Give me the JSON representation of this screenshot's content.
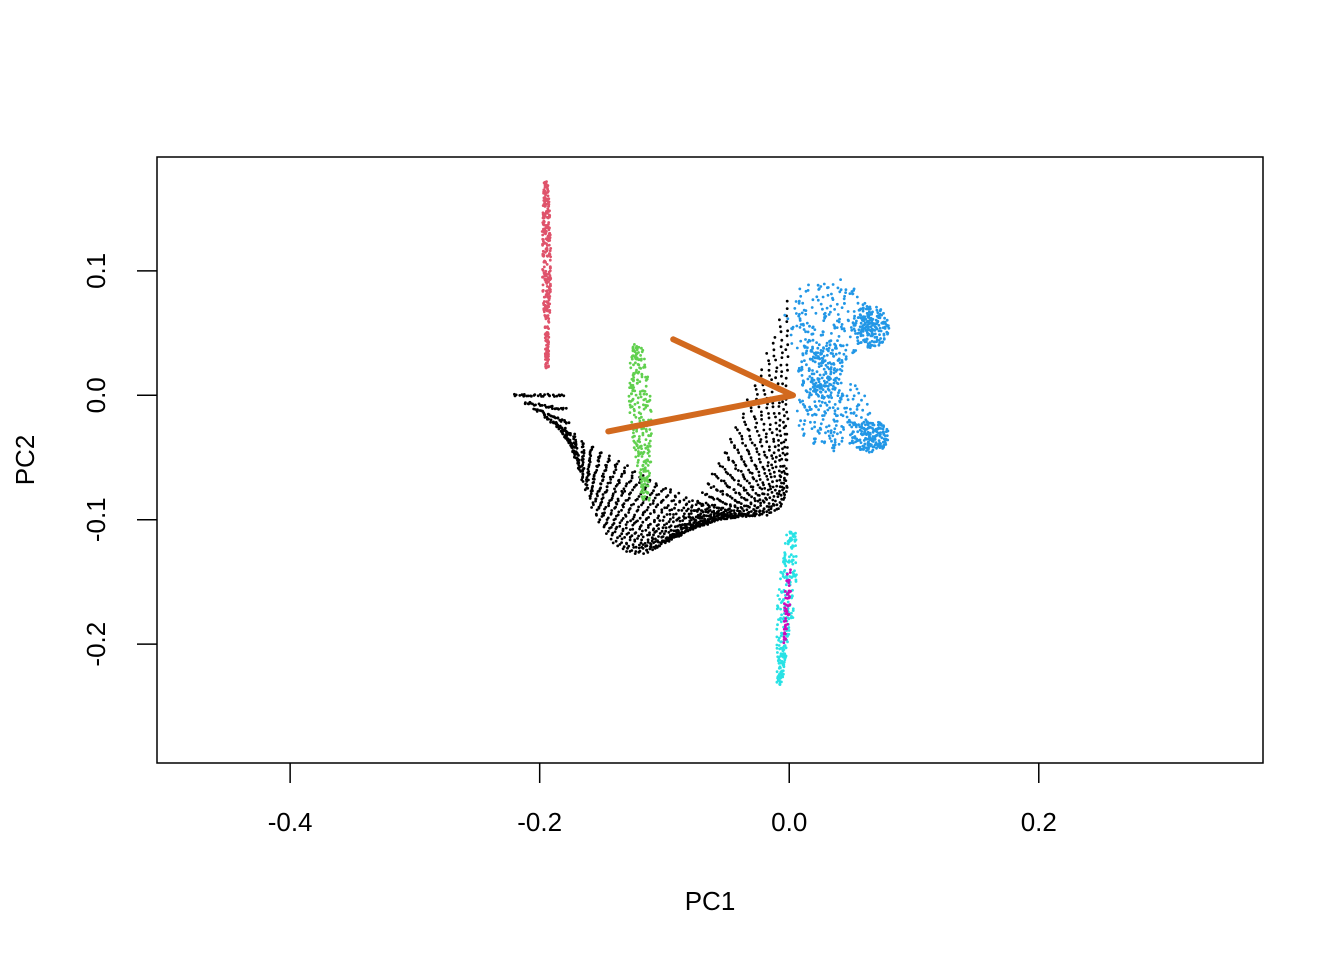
{
  "chart_data": {
    "type": "scatter",
    "title": "",
    "xlabel": "PC1",
    "ylabel": "PC2",
    "xlim": [
      -0.5067,
      0.3797
    ],
    "ylim": [
      -0.2955,
      0.1915
    ],
    "x_ticks": [
      {
        "value": -0.4,
        "label": "-0.4"
      },
      {
        "value": -0.2,
        "label": "-0.2"
      },
      {
        "value": 0.0,
        "label": "0.0"
      },
      {
        "value": 0.2,
        "label": "0.2"
      }
    ],
    "y_ticks": [
      {
        "value": -0.2,
        "label": "-0.2"
      },
      {
        "value": -0.1,
        "label": "-0.1"
      },
      {
        "value": 0.0,
        "label": "0.0"
      },
      {
        "value": 0.1,
        "label": "0.1"
      }
    ],
    "grid": false,
    "legend": "none",
    "clusters": [
      {
        "color": "#000000",
        "shape": "fan-band",
        "start": {
          "x": -0.201,
          "y": 0.0,
          "dx": -0.004,
          "dy": 0.0
        },
        "end": {
          "x": -0.002,
          "y": 0.075,
          "dx": 0.0,
          "dy": -0.15
        },
        "mid": {
          "x": -0.072,
          "y": -0.215,
          "dx": 0.012,
          "dy": 0.072
        },
        "width": 0.035,
        "points": 1400
      },
      {
        "color": "#df536b",
        "shape": "band",
        "start": {
          "x": -0.195,
          "y": 0.172
        },
        "end": {
          "x": -0.194,
          "y": 0.022
        },
        "width": 0.007,
        "points": 320
      },
      {
        "color": "#61d04f",
        "shape": "band",
        "start": {
          "x": -0.122,
          "y": 0.04
        },
        "end": {
          "x": -0.115,
          "y": -0.085
        },
        "width": 0.018,
        "points": 260
      },
      {
        "color": "#2297e6",
        "shape": "blob",
        "parts": [
          {
            "x": 0.03,
            "y": 0.06,
            "rx": 0.034,
            "ry": 0.035
          },
          {
            "x": 0.065,
            "y": 0.055,
            "rx": 0.015,
            "ry": 0.017
          },
          {
            "x": 0.035,
            "y": -0.015,
            "rx": 0.03,
            "ry": 0.03
          },
          {
            "x": 0.065,
            "y": -0.033,
            "rx": 0.015,
            "ry": 0.013
          },
          {
            "x": 0.025,
            "y": 0.022,
            "rx": 0.018,
            "ry": 0.025
          }
        ],
        "points": 900
      },
      {
        "color": "#28e2e5",
        "shape": "band",
        "start": {
          "x": 0.002,
          "y": -0.11
        },
        "end": {
          "x": -0.008,
          "y": -0.232
        },
        "width": 0.014,
        "points": 240
      },
      {
        "color": "#cd0bbc",
        "shape": "band",
        "start": {
          "x": 0.0,
          "y": -0.14
        },
        "end": {
          "x": -0.004,
          "y": -0.2
        },
        "width": 0.005,
        "points": 50
      }
    ],
    "line": {
      "color": "#d2691e",
      "points": [
        {
          "x": -0.093,
          "y": 0.045
        },
        {
          "x": 0.003,
          "y": 0.0
        },
        {
          "x": -0.145,
          "y": -0.029
        }
      ]
    }
  }
}
